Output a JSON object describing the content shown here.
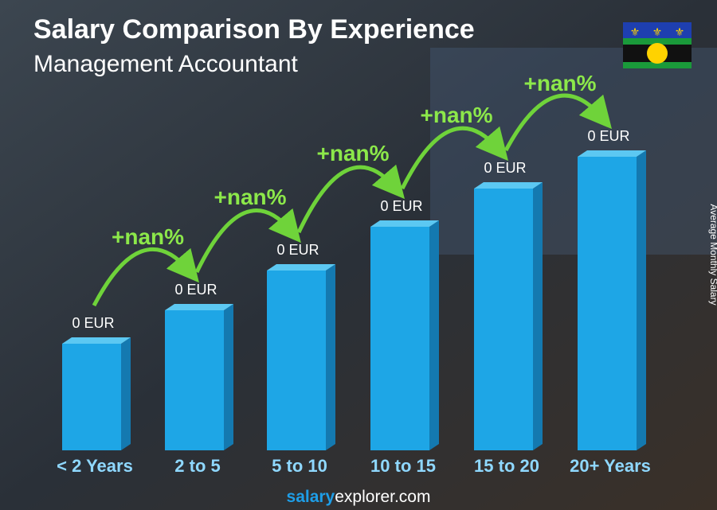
{
  "header": {
    "title": "Salary Comparison By Experience",
    "subtitle": "Management Accountant"
  },
  "side_label": "Average Monthly Salary",
  "bars": [
    {
      "category": "< 2 Years",
      "value_label": "0 EUR"
    },
    {
      "category": "2 to 5",
      "value_label": "0 EUR"
    },
    {
      "category": "5 to 10",
      "value_label": "0 EUR"
    },
    {
      "category": "10 to 15",
      "value_label": "0 EUR"
    },
    {
      "category": "15 to 20",
      "value_label": "0 EUR"
    },
    {
      "category": "20+ Years",
      "value_label": "0 EUR"
    }
  ],
  "increments": [
    "+nan%",
    "+nan%",
    "+nan%",
    "+nan%",
    "+nan%"
  ],
  "footer": {
    "brand": "salary",
    "domain": "explorer.com"
  }
}
